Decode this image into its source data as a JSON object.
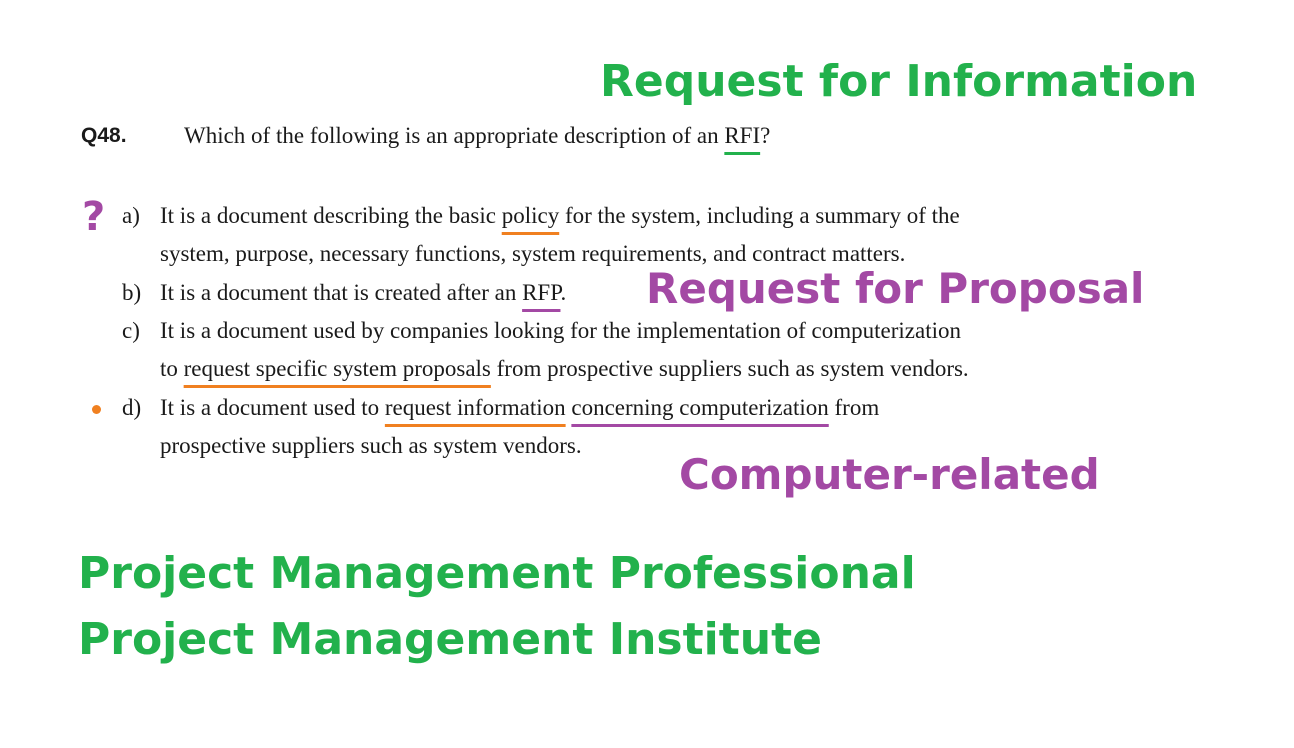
{
  "annotations": {
    "rfi_expansion": "Request for Information",
    "rfp_expansion": "Request for Proposal",
    "computer_related": "Computer-related",
    "pmp": "Project Management Professional",
    "pmi": "Project Management Institute",
    "question_mark": "?"
  },
  "question": {
    "number": "Q48.",
    "text_before": "Which of the following is an appropriate description of an ",
    "term": "RFI",
    "text_after": "?"
  },
  "options": {
    "a": {
      "letter": "a)",
      "l1_before": "It is a document describing the basic ",
      "l1_mark": "policy",
      "l1_after": " for the system, including a summary of the",
      "l2": "system, purpose, necessary functions, system requirements, and contract matters."
    },
    "b": {
      "letter": "b)",
      "before": "It is a document that is created after an ",
      "mark": "RFP",
      "after": "."
    },
    "c": {
      "letter": "c)",
      "l1": "It is a document used by companies looking for the implementation of computerization",
      "l2_before": "to ",
      "l2_mark": "request specific system proposals",
      "l2_after": " from prospective suppliers such as system vendors."
    },
    "d": {
      "letter": "d)",
      "l1_before": "It is a document used to ",
      "l1_mark1": "request information",
      "l1_mid": " ",
      "l1_mark2": "concerning computerization",
      "l1_after": " from",
      "l2": "prospective suppliers such as system vendors."
    }
  },
  "colors": {
    "green": "#22b14c",
    "purple": "#a349a4",
    "orange": "#f08020"
  }
}
